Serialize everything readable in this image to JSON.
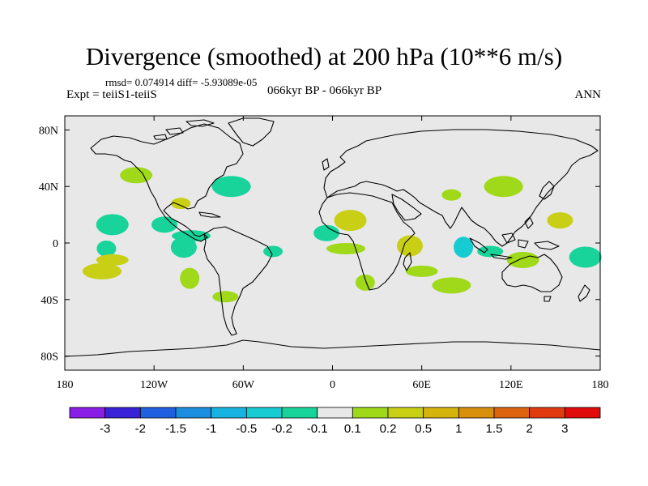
{
  "title": "Divergence (smoothed) at 200 hPa (10**6 m/s)",
  "stats": "rmsd= 0.074914 diff= -5.93089e-05",
  "experiment": "Expt = teiiS1-teiiS",
  "period": "066kyr BP - 066kyr BP",
  "season": "ANN",
  "map": {
    "lon_ticks": [
      {
        "value": -180,
        "label": "180"
      },
      {
        "value": -120,
        "label": "120W"
      },
      {
        "value": -60,
        "label": "60W"
      },
      {
        "value": 0,
        "label": "0"
      },
      {
        "value": 60,
        "label": "60E"
      },
      {
        "value": 120,
        "label": "120E"
      },
      {
        "value": 180,
        "label": "180"
      }
    ],
    "lat_ticks": [
      {
        "value": 80,
        "label": "80N"
      },
      {
        "value": 40,
        "label": "40N"
      },
      {
        "value": 0,
        "label": "0"
      },
      {
        "value": -40,
        "label": "40S"
      },
      {
        "value": -80,
        "label": "80S"
      }
    ],
    "lon_range": [
      -180,
      180
    ],
    "lat_range": [
      -90,
      90
    ],
    "ocean_color": "#e8e8e8",
    "coast_color": "#000000"
  },
  "colorbar": {
    "colors": [
      "#8a1de6",
      "#3a22d6",
      "#1f5fe0",
      "#1b8ee0",
      "#17b3e0",
      "#16ccd2",
      "#18d49a",
      "#e8e8e8",
      "#a0d81a",
      "#c8cf14",
      "#d5b40e",
      "#d88f0c",
      "#dc640e",
      "#e03a10",
      "#e00c0c"
    ],
    "labels": [
      "-3",
      "-2",
      "-1.5",
      "-1",
      "-0.5",
      "-0.2",
      "-0.1",
      "0.1",
      "0.2",
      "0.5",
      "1",
      "1.5",
      "2",
      "3"
    ]
  },
  "chart_data": {
    "type": "heatmap",
    "title": "Divergence (smoothed) at 200 hPa (10**6 m/s)",
    "levels": [
      -3,
      -2,
      -1.5,
      -1,
      -0.5,
      -0.2,
      -0.1,
      0.1,
      0.2,
      0.5,
      1,
      1.5,
      2,
      3
    ],
    "xlabel": "",
    "ylabel": "",
    "xlim": [
      -180,
      180
    ],
    "ylim": [
      -90,
      90
    ],
    "features": [
      {
        "lon": -102,
        "lat": 28,
        "value": 0.5
      },
      {
        "lon": -113,
        "lat": 13,
        "value": -0.15
      },
      {
        "lon": -148,
        "lat": 13,
        "value": -0.15
      },
      {
        "lon": -95,
        "lat": 5,
        "value": -0.15
      },
      {
        "lon": -152,
        "lat": -4,
        "value": -0.15
      },
      {
        "lon": -100,
        "lat": -3,
        "value": -0.15
      },
      {
        "lon": -148,
        "lat": -12,
        "value": 0.3
      },
      {
        "lon": -155,
        "lat": -20,
        "value": 0.5
      },
      {
        "lon": -96,
        "lat": -25,
        "value": 0.15
      },
      {
        "lon": -72,
        "lat": -38,
        "value": 0.15
      },
      {
        "lon": -132,
        "lat": 48,
        "value": 0.15
      },
      {
        "lon": -68,
        "lat": 40,
        "value": -0.15
      },
      {
        "lon": -40,
        "lat": -6,
        "value": -0.15
      },
      {
        "lon": -4,
        "lat": 7,
        "value": -0.15
      },
      {
        "lon": 12,
        "lat": 16,
        "value": 0.5
      },
      {
        "lon": 9,
        "lat": -4,
        "value": 0.15
      },
      {
        "lon": 22,
        "lat": -28,
        "value": 0.15
      },
      {
        "lon": 52,
        "lat": -2,
        "value": 0.5
      },
      {
        "lon": 60,
        "lat": -20,
        "value": 0.15
      },
      {
        "lon": 80,
        "lat": -30,
        "value": 0.15
      },
      {
        "lon": 88,
        "lat": -3,
        "value": -0.3
      },
      {
        "lon": 106,
        "lat": -6,
        "value": -0.15
      },
      {
        "lon": 128,
        "lat": -12,
        "value": 0.15
      },
      {
        "lon": 115,
        "lat": 40,
        "value": 0.15
      },
      {
        "lon": 80,
        "lat": 34,
        "value": 0.15
      },
      {
        "lon": 153,
        "lat": 16,
        "value": 0.3
      },
      {
        "lon": 170,
        "lat": -10,
        "value": -0.15
      }
    ]
  }
}
